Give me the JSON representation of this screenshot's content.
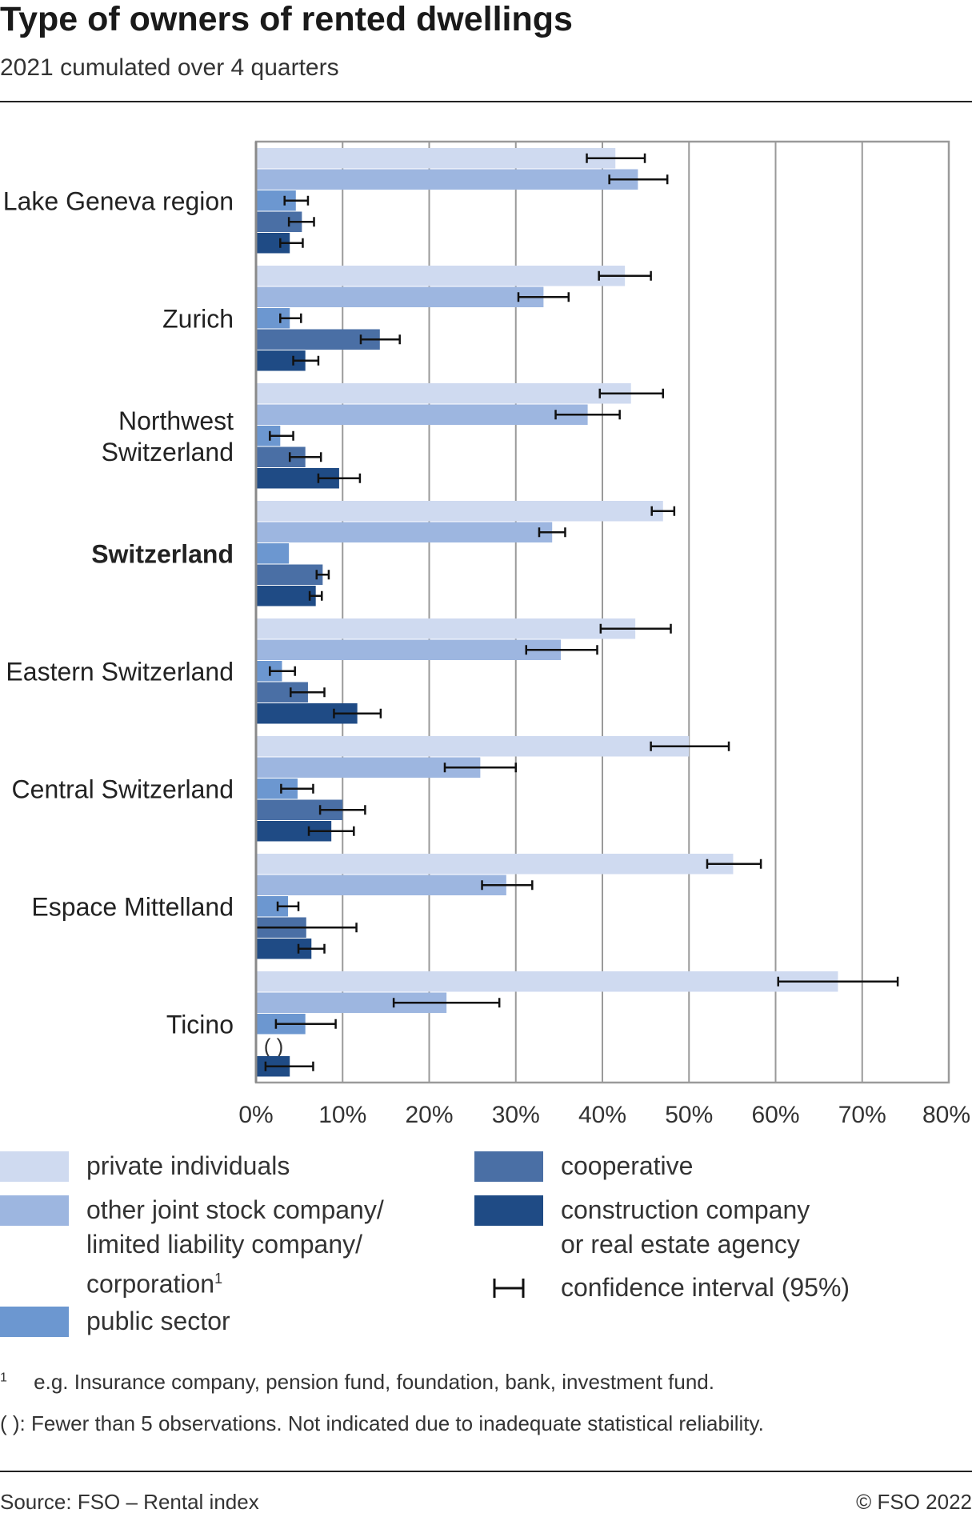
{
  "header": {
    "title": "Type of owners of rented dwellings",
    "subtitle": "2021 cumulated over 4 quarters"
  },
  "chart_data": {
    "type": "bar",
    "orientation": "horizontal",
    "categories": [
      "Lake Geneva region",
      "Zurich",
      "Northwest Switzerland",
      "Switzerland",
      "Eastern Switzerland",
      "Central Switzerland",
      "Espace Mittelland",
      "Ticino"
    ],
    "highlight_category": "Switzerland",
    "series": [
      {
        "name": "private individuals",
        "color": "#cfdaf0",
        "values": [
          41.5,
          42.6,
          43.3,
          47.0,
          43.8,
          50.0,
          55.1,
          67.2
        ],
        "ci_low": [
          38.2,
          39.6,
          39.7,
          45.7,
          39.8,
          45.6,
          52.1,
          60.3
        ],
        "ci_high": [
          44.9,
          45.6,
          47.0,
          48.3,
          47.9,
          54.6,
          58.3,
          74.1
        ]
      },
      {
        "name": "other joint stock company/ limited liability company/ corporation",
        "color": "#9db6e0",
        "values": [
          44.1,
          33.2,
          38.3,
          34.2,
          35.2,
          25.9,
          28.9,
          22.0
        ],
        "ci_low": [
          40.8,
          30.3,
          34.6,
          32.7,
          31.2,
          21.8,
          26.1,
          15.9
        ],
        "ci_high": [
          47.5,
          36.1,
          42.0,
          35.7,
          39.4,
          30.0,
          31.9,
          28.1
        ]
      },
      {
        "name": "public sector",
        "color": "#6c97d0",
        "values": [
          4.6,
          3.9,
          2.8,
          3.8,
          3.0,
          4.8,
          3.7,
          5.7
        ],
        "ci_low": [
          3.3,
          2.8,
          1.6,
          null,
          1.6,
          2.9,
          2.5,
          2.3
        ],
        "ci_high": [
          6.0,
          5.2,
          4.3,
          null,
          4.5,
          6.6,
          4.9,
          9.2
        ]
      },
      {
        "name": "cooperative",
        "color": "#4a6fa5",
        "values": [
          5.3,
          14.3,
          5.7,
          7.7,
          6.0,
          10.0,
          5.8,
          null
        ],
        "ci_low": [
          3.8,
          12.1,
          3.9,
          7.0,
          4.0,
          7.4,
          0.0,
          null
        ],
        "ci_high": [
          6.7,
          16.6,
          7.5,
          8.4,
          7.9,
          12.6,
          11.6,
          null
        ],
        "not_indicated_label": "( )"
      },
      {
        "name": "construction company or real estate agency",
        "color": "#1f4b85",
        "values": [
          3.9,
          5.7,
          9.6,
          6.9,
          11.7,
          8.7,
          6.4,
          3.9
        ],
        "ci_low": [
          2.8,
          4.3,
          7.2,
          6.2,
          9.0,
          6.1,
          4.9,
          1.1
        ],
        "ci_high": [
          5.4,
          7.2,
          12.0,
          7.6,
          14.4,
          11.3,
          7.9,
          6.6
        ]
      }
    ],
    "xlim": [
      0,
      80
    ],
    "xticks": [
      "0%",
      "10%",
      "20%",
      "30%",
      "40%",
      "50%",
      "60%",
      "70%",
      "80%"
    ],
    "grid": true,
    "legend_position": "bottom"
  },
  "legend": {
    "private": "private individuals",
    "other_line1": "other joint stock company/",
    "other_line2": "limited liability company/",
    "other_line3": "corporation",
    "other_sup": "1",
    "public": "public sector",
    "cooperative": "cooperative",
    "construction_line1": "construction company",
    "construction_line2": "or real estate agency",
    "ci": "confidence interval (95%)"
  },
  "notes": {
    "footnote_mark": "1",
    "footnote_text": "e.g. Insurance company, pension fund, foundation, bank, investment fund.",
    "parens_note": "( ): Fewer than 5 observations. Not indicated due to inadequate statistical reliability."
  },
  "footer": {
    "source": "Source: FSO – Rental index",
    "copyright": "© FSO 2022"
  }
}
